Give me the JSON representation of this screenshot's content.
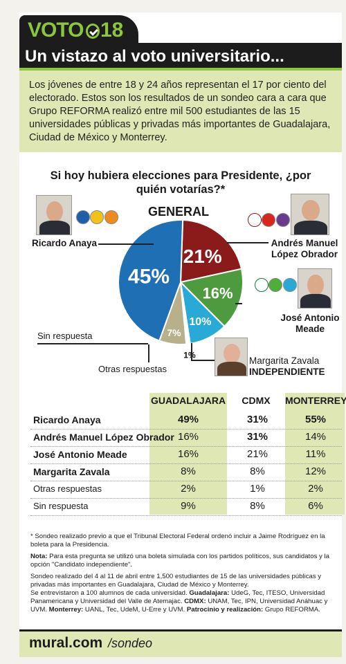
{
  "header": {
    "voto_word": "VOTO",
    "voto_year": "18",
    "title": "Un vistazo al voto universitario...",
    "intro": "Los jóvenes de entre 18 y 24 años representan el 17 por ciento del electorado. Estos son los resultados de un sondeo cara a cara que Grupo REFORMA realizó entre mil 500 estudiantes de las 15 universidades públicas y privadas más importantes de Guadalajara, Ciudad de México y Monterrey."
  },
  "question": "Si hoy hubiera elecciones para Presidente, ¿por quién votarías?*",
  "candidates": {
    "anaya": "Ricardo Anaya",
    "amlo_1": "Andrés Manuel",
    "amlo_2": "López Obrador",
    "meade_1": "José Antonio",
    "meade_2": "Meade",
    "zavala_1": "Margarita Zavala",
    "zavala_2": "INDEPENDIENTE",
    "sin": "Sin respuesta",
    "otras": "Otras respuestas"
  },
  "colors": {
    "anaya": "#1f6fb5",
    "amlo": "#8b1a1a",
    "meade": "#4e9a3e",
    "zavala": "#29a9d6",
    "otras": "#b8b08a",
    "sin": "#ffffff",
    "accent": "#8cc63f",
    "panel": "#dfe8b4"
  },
  "chart_data": {
    "type": "pie",
    "title": "GENERAL",
    "slices": [
      {
        "name": "Ricardo Anaya",
        "value": 45,
        "label": "45%",
        "color": "#1f6fb5"
      },
      {
        "name": "Andrés Manuel López Obrador",
        "value": 21,
        "label": "21%",
        "color": "#8b1a1a"
      },
      {
        "name": "José Antonio Meade",
        "value": 16,
        "label": "16%",
        "color": "#4e9a3e"
      },
      {
        "name": "Margarita Zavala",
        "value": 10,
        "label": "10%",
        "color": "#29a9d6"
      },
      {
        "name": "Sin respuesta",
        "value": 1,
        "label": "1%",
        "color": "#ffffff"
      },
      {
        "name": "Otras respuestas",
        "value": 7,
        "label": "7%",
        "color": "#b8b08a"
      }
    ]
  },
  "table": {
    "columns": [
      "GUADALAJARA",
      "CDMX",
      "MONTERREY"
    ],
    "rows": [
      {
        "name": "Ricardo Anaya",
        "values": [
          "49%",
          "31%",
          "55%"
        ],
        "bold": [
          true,
          true,
          true
        ],
        "light": false
      },
      {
        "name": "Andrés Manuel López Obrador",
        "values": [
          "16%",
          "31%",
          "14%"
        ],
        "bold": [
          false,
          true,
          false
        ],
        "light": false
      },
      {
        "name": "José Antonio Meade",
        "values": [
          "16%",
          "21%",
          "11%"
        ],
        "bold": [
          false,
          false,
          false
        ],
        "light": false
      },
      {
        "name": "Margarita Zavala",
        "values": [
          "8%",
          "8%",
          "12%"
        ],
        "bold": [
          false,
          false,
          false
        ],
        "light": false
      },
      {
        "name": "Otras respuestas",
        "values": [
          "2%",
          "1%",
          "2%"
        ],
        "bold": [
          false,
          false,
          false
        ],
        "light": true
      },
      {
        "name": "Sin respuesta",
        "values": [
          "9%",
          "8%",
          "6%"
        ],
        "bold": [
          false,
          false,
          false
        ],
        "light": true
      }
    ]
  },
  "notes": {
    "footnote": "* Sondeo realizado previo a que el Tribunal Electoral Federal ordenó incluir a Jaime Rodríguez en la boleta para la Presidencia.",
    "nota_label": "Nota:",
    "nota": " Para esta pregunta se utilizó una boleta simulada con los partidos políticos, sus candidatos y la opción \"Candidato independiente\".",
    "method": "Sondeo realizado del 4 al 11 de abril entre 1,500 estudiantes de 15 de las universidades públicas y privadas más importantes en Guadalajara, Ciudad de México y Monterrey.",
    "unis_intro": "Se entrevistaron a 100 alumnos de cada universidad. ",
    "gdl_label": "Guadalajara:",
    "gdl": " UdeG, Tec, ITESO, Universidad Panamericana y Universidad del Valle de Atemajac. ",
    "cdmx_label": "CDMX:",
    "cdmx": " UNAM, Tec, IPN, Universidad Anáhuac y UVM. ",
    "mty_label": "Monterrey:",
    "mty": " UANL, Tec, UdeM, U-Erre y UVM. ",
    "pat_label": "Patrocinio y realización:",
    "pat": " Grupo REFORMA."
  },
  "footer": {
    "site": "mural.com",
    "path": "/sondeo"
  }
}
